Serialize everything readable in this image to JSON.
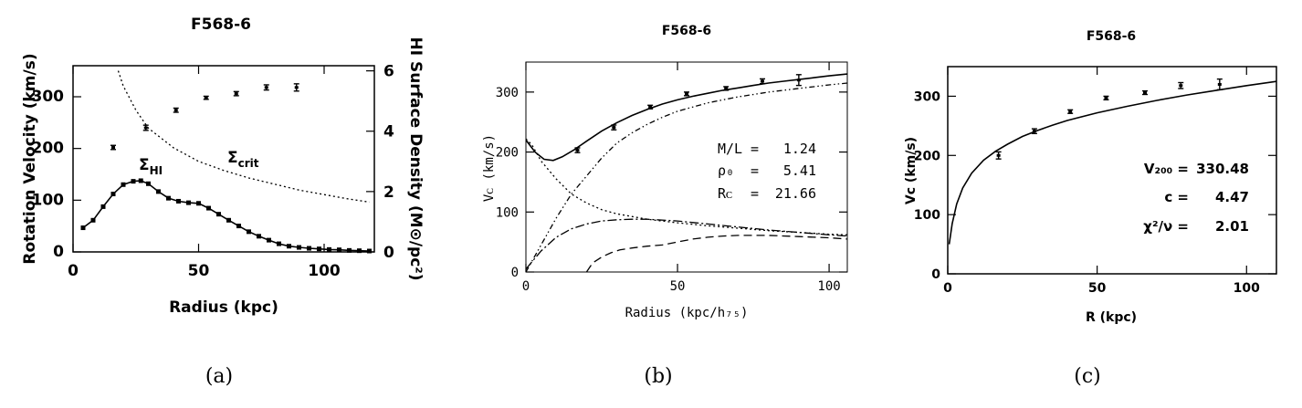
{
  "chart_data": [
    {
      "panel_label": "(a)",
      "type": "scatter",
      "title": "F568-6",
      "xlabel": "Radius (kpc)",
      "ylabel": "Rotation Velocity (km/s)",
      "y2label": "HI Surface Density (M⊙/pc²)",
      "xlim": [
        0,
        120
      ],
      "ylim": [
        0,
        360
      ],
      "y2lim": [
        0,
        6.17
      ],
      "x_ticks": [
        0,
        50,
        100
      ],
      "y_ticks": [
        0,
        100,
        200,
        300
      ],
      "y2_ticks": [
        0,
        2,
        4,
        6
      ],
      "series": [
        {
          "type": "scatter-errorbar",
          "x": [
            16,
            29,
            41,
            53,
            65,
            77,
            89
          ],
          "y": [
            202,
            240,
            274,
            298,
            306,
            318,
            318
          ],
          "err": [
            4,
            5,
            4,
            3,
            4,
            5,
            7
          ]
        },
        {
          "type": "line-with-markers",
          "axis": "right",
          "x": [
            4,
            8,
            12,
            16,
            20,
            24,
            27,
            30,
            34,
            38,
            42,
            46,
            50,
            54,
            58,
            62,
            66,
            70,
            74,
            78,
            82,
            86,
            90,
            94,
            98,
            102,
            106,
            110,
            114,
            118
          ],
          "y": [
            0.8,
            1.05,
            1.5,
            1.92,
            2.23,
            2.34,
            2.36,
            2.26,
            2.0,
            1.78,
            1.68,
            1.63,
            1.61,
            1.45,
            1.25,
            1.05,
            0.86,
            0.67,
            0.52,
            0.39,
            0.27,
            0.19,
            0.15,
            0.12,
            0.1,
            0.08,
            0.07,
            0.05,
            0.04,
            0.03
          ]
        },
        {
          "type": "dotted-line",
          "axis": "right",
          "x": [
            18,
            20,
            25,
            30,
            40,
            50,
            60,
            70,
            80,
            90,
            100,
            110,
            118
          ],
          "y": [
            6.0,
            5.5,
            4.7,
            4.1,
            3.45,
            3.0,
            2.7,
            2.45,
            2.25,
            2.05,
            1.9,
            1.75,
            1.65
          ]
        }
      ],
      "annotations": [
        {
          "text": "Σ",
          "sub": "HI",
          "x": 22,
          "y": 150
        },
        {
          "text": "Σ",
          "sub": "crit",
          "x": 58,
          "y": 162
        }
      ]
    },
    {
      "panel_label": "(b)",
      "type": "line",
      "title": "F568-6",
      "xlabel": "Radius (kpc/h₇₅)",
      "ylabel": "Vᴄ (km/s)",
      "xlim": [
        0,
        106
      ],
      "ylim": [
        0,
        350
      ],
      "x_ticks": [
        0,
        50,
        100
      ],
      "y_ticks": [
        0,
        100,
        200,
        300
      ],
      "params": [
        {
          "label": "M/L",
          "value": "1.24"
        },
        {
          "label": "ρ₀",
          "value": "5.41"
        },
        {
          "label": "Rᴄ",
          "value": "21.66"
        }
      ],
      "points": {
        "x": [
          17,
          29,
          41,
          53,
          66,
          78,
          90
        ],
        "y": [
          203,
          241,
          275,
          297,
          306,
          318,
          320
        ],
        "err": [
          4,
          4,
          3,
          3,
          3,
          4,
          9
        ]
      },
      "series": [
        {
          "style": "solid",
          "x": [
            0,
            3,
            6,
            9,
            12,
            16,
            20,
            25,
            30,
            35,
            40,
            45,
            50,
            55,
            60,
            65,
            70,
            75,
            80,
            85,
            90,
            95,
            100,
            106
          ],
          "y": [
            220,
            200,
            188,
            186,
            192,
            204,
            218,
            235,
            249,
            261,
            271,
            280,
            287,
            293,
            298,
            303,
            307,
            311,
            315,
            318,
            321,
            324,
            327,
            330
          ]
        },
        {
          "style": "dotted",
          "x": [
            0,
            2,
            5,
            10,
            15,
            20,
            25,
            30,
            40,
            50,
            60,
            70,
            80,
            90,
            100,
            106
          ],
          "y": [
            222,
            212,
            185,
            155,
            130,
            115,
            104,
            97,
            88,
            82,
            77,
            73,
            69,
            66,
            63,
            62
          ]
        },
        {
          "style": "dash-dot",
          "x": [
            0,
            5,
            10,
            15,
            20,
            25,
            30,
            35,
            40,
            45,
            50,
            60,
            70,
            80,
            90,
            100,
            106
          ],
          "y": [
            0,
            45,
            90,
            130,
            160,
            190,
            215,
            232,
            246,
            258,
            268,
            282,
            292,
            300,
            306,
            312,
            315
          ]
        },
        {
          "style": "long-dash-dot",
          "x": [
            0,
            5,
            10,
            15,
            20,
            25,
            30,
            35,
            40,
            50,
            60,
            70,
            80,
            90,
            100,
            106
          ],
          "y": [
            5,
            35,
            58,
            72,
            80,
            85,
            87,
            88,
            88,
            85,
            80,
            75,
            70,
            66,
            62,
            60
          ]
        },
        {
          "style": "dashed",
          "x": [
            20,
            22,
            25,
            28,
            31,
            35,
            40,
            45,
            50,
            55,
            60,
            65,
            70,
            80,
            90,
            100,
            106
          ],
          "y": [
            0,
            15,
            25,
            32,
            37,
            40,
            43,
            45,
            50,
            55,
            58,
            60,
            61,
            61,
            59,
            57,
            55
          ]
        }
      ]
    },
    {
      "panel_label": "(c)",
      "type": "line",
      "title": "F568-6",
      "xlabel": "R (kpc)",
      "ylabel": "Vᴄ (km/s)",
      "xlim": [
        0,
        110
      ],
      "ylim": [
        0,
        350
      ],
      "x_ticks": [
        0,
        50,
        100
      ],
      "y_ticks": [
        0,
        100,
        200,
        300
      ],
      "params": [
        {
          "label": "V₂₀₀ =",
          "value": "330.48"
        },
        {
          "label": "c =",
          "value": "4.47"
        },
        {
          "label": "χ²/ν =",
          "value": "2.01"
        }
      ],
      "points": {
        "x": [
          17,
          29,
          41,
          53,
          66,
          78,
          91
        ],
        "y": [
          200,
          241,
          274,
          297,
          306,
          318,
          320
        ],
        "err": [
          6,
          4,
          3,
          3,
          3,
          5,
          9
        ]
      },
      "series": [
        {
          "style": "solid",
          "x": [
            0.5,
            1.5,
            3,
            5,
            8,
            12,
            16,
            20,
            25,
            30,
            35,
            40,
            50,
            60,
            70,
            80,
            90,
            100,
            110
          ],
          "y": [
            50,
            85,
            118,
            145,
            170,
            192,
            207,
            219,
            232,
            242,
            251,
            259,
            272,
            283,
            293,
            302,
            310,
            318,
            325
          ]
        }
      ]
    }
  ]
}
